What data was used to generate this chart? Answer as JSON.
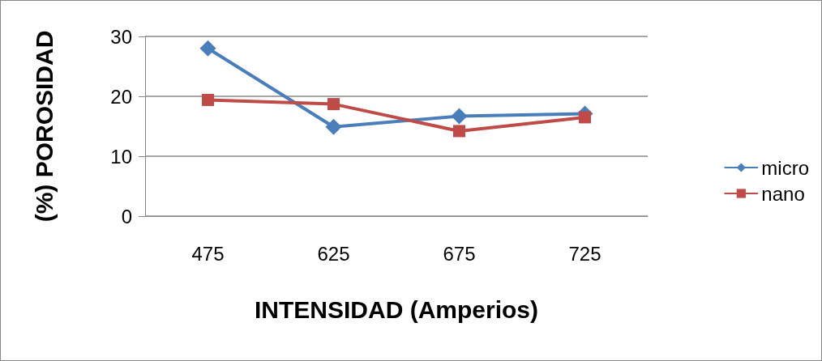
{
  "chart_data": {
    "type": "line",
    "xlabel": "INTENSIDAD (Amperios)",
    "ylabel": "(%) POROSIDAD",
    "categories": [
      "475",
      "625",
      "675",
      "725"
    ],
    "series": [
      {
        "name": "micro",
        "color": "#4a7ebb",
        "marker": "diamond",
        "values": [
          28.0,
          14.9,
          16.7,
          17.1
        ]
      },
      {
        "name": "nano",
        "color": "#be4b48",
        "marker": "square",
        "values": [
          19.4,
          18.7,
          14.2,
          16.5
        ]
      }
    ],
    "ylim": [
      0,
      30
    ],
    "yticks": [
      0,
      10,
      20,
      30
    ],
    "grid": "y",
    "legend": "right",
    "line_style": "solid"
  }
}
